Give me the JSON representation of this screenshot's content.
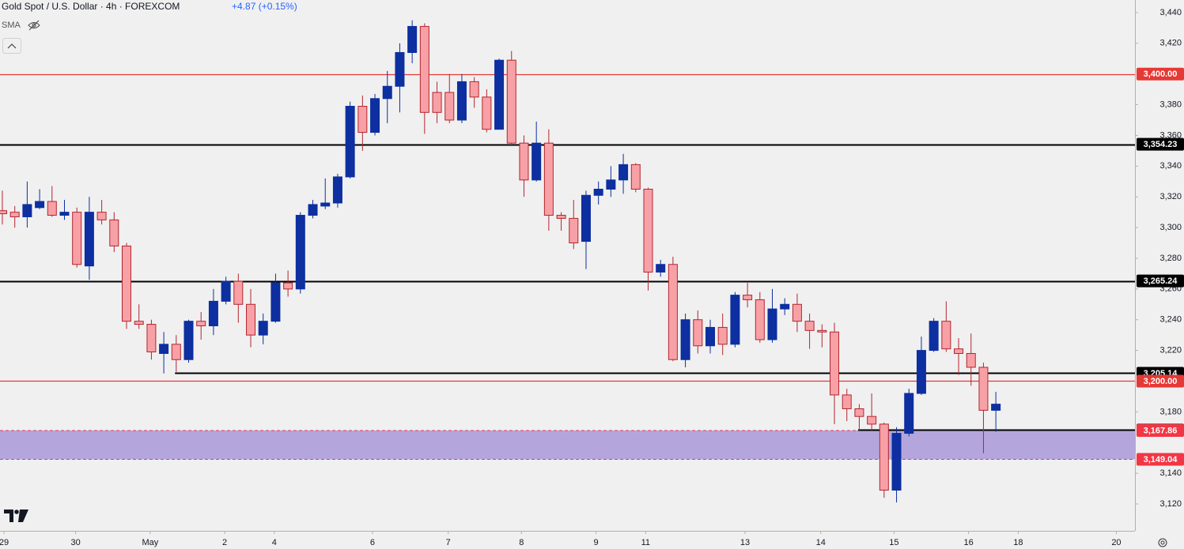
{
  "chart_data": {
    "type": "candlestick",
    "title": "Gold Spot / U.S. Dollar · 4h · FOREXCOM",
    "change": "+4.87 (+0.15%)",
    "indicator": "SMA",
    "up_color": "#0d2fa0",
    "down_color": "#f7a1a7",
    "down_line": "#b3262e",
    "xlim": [
      -0.19,
      91.2
    ],
    "xticks": [
      0.13,
      5.9,
      {
        "value": 11.9,
        "label": "May"
      },
      {
        "value": 17.9,
        "label": "2"
      },
      {
        "value": 21.9,
        "label": "4"
      },
      {
        "value": 29.8,
        "label": "6"
      },
      {
        "value": 35.9,
        "label": "7"
      },
      {
        "value": 41.8,
        "label": "8"
      },
      {
        "value": 47.8,
        "label": "9"
      },
      {
        "value": 51.8,
        "label": "11"
      },
      {
        "value": 59.8,
        "label": "13"
      },
      {
        "value": 65.9,
        "label": "14"
      },
      {
        "value": 71.8,
        "label": "15"
      },
      {
        "value": 77.8,
        "label": "16"
      },
      {
        "value": 81.8,
        "label": "18"
      },
      {
        "value": 89.7,
        "label": "20"
      }
    ],
    "xtick_labels_plain": [
      "29",
      "30"
    ],
    "ylim": [
      3102.5,
      3448.2
    ],
    "yticks": [
      {
        "value": 3440,
        "label": "3,440"
      },
      {
        "value": 3420,
        "label": "3,420"
      },
      {
        "value": 3380,
        "label": "3,380"
      },
      {
        "value": 3360,
        "label": "3,360"
      },
      {
        "value": 3340,
        "label": "3,340"
      },
      {
        "value": 3320,
        "label": "3,320"
      },
      {
        "value": 3300,
        "label": "3,300"
      },
      {
        "value": 3280,
        "label": "3,280"
      },
      {
        "value": 3260,
        "label": "3,260"
      },
      {
        "value": 3240,
        "label": "3,240"
      },
      {
        "value": 3220,
        "label": "3,220"
      },
      {
        "value": 3180,
        "label": "3,180"
      },
      {
        "value": 3140,
        "label": "3,140"
      },
      {
        "value": 3120,
        "label": "3,120"
      }
    ],
    "open": [
      3311,
      3310,
      3307,
      3313,
      3317,
      3308,
      3310,
      3275,
      3310,
      3305,
      3288,
      3239,
      3237,
      3218,
      3224,
      3214,
      3239,
      3236,
      3252,
      3265,
      3250,
      3230,
      3239,
      3264,
      3260,
      3308,
      3314,
      3316,
      3333,
      3379,
      3362,
      3384,
      3392,
      3414,
      3431,
      3388,
      3388,
      3370,
      3395,
      3385,
      3364,
      3409,
      3355,
      3331,
      3355,
      3308,
      3306,
      3291,
      3321,
      3325,
      3331,
      3341,
      3325,
      3271,
      3276,
      3214,
      3240,
      3223,
      3235,
      3224,
      3256,
      3253,
      3227,
      3247,
      3250,
      3239,
      3233,
      3232,
      3191,
      3182,
      3177,
      3172,
      3129,
      3166,
      3192,
      3220,
      3239,
      3221,
      3218,
      3209,
      3181
    ],
    "high": [
      3324,
      3314,
      3330,
      3325,
      3327,
      3318,
      3313,
      3320,
      3318,
      3310,
      3290,
      3250,
      3240,
      3232,
      3230,
      3240,
      3245,
      3260,
      3268,
      3270,
      3260,
      3244,
      3270,
      3272,
      3310,
      3318,
      3332,
      3335,
      3382,
      3386,
      3387,
      3402,
      3420,
      3435,
      3433,
      3395,
      3400,
      3400,
      3398,
      3390,
      3410,
      3415,
      3360,
      3369,
      3364,
      3310,
      3318,
      3324,
      3330,
      3340,
      3348,
      3342,
      3326,
      3279,
      3281,
      3244,
      3246,
      3240,
      3244,
      3258,
      3264,
      3258,
      3260,
      3254,
      3257,
      3244,
      3237,
      3238,
      3195,
      3185,
      3192,
      3173,
      3170,
      3195,
      3229,
      3241,
      3252,
      3228,
      3231,
      3212,
      3193
    ],
    "low": [
      3302,
      3300,
      3300,
      3312,
      3307,
      3305,
      3274,
      3266,
      3302,
      3284,
      3234,
      3234,
      3214,
      3205,
      3206,
      3212,
      3227,
      3230,
      3250,
      3238,
      3222,
      3224,
      3238,
      3255,
      3257,
      3306,
      3312,
      3313,
      3332,
      3350,
      3360,
      3368,
      3375,
      3407,
      3361,
      3368,
      3368,
      3368,
      3378,
      3362,
      3364,
      3353,
      3320,
      3330,
      3298,
      3298,
      3286,
      3273,
      3315,
      3320,
      3322,
      3323,
      3259,
      3268,
      3213,
      3209,
      3218,
      3218,
      3217,
      3222,
      3248,
      3225,
      3225,
      3243,
      3232,
      3221,
      3222,
      3172,
      3174,
      3168,
      3168,
      3124,
      3121,
      3164,
      3191,
      3219,
      3219,
      3204,
      3197,
      3153,
      3167
    ],
    "close": [
      3309,
      3307,
      3315,
      3317,
      3308,
      3310,
      3276,
      3310,
      3305,
      3288,
      3239,
      3237,
      3219,
      3224,
      3214,
      3239,
      3236,
      3252,
      3265,
      3250,
      3230,
      3239,
      3264,
      3260,
      3308,
      3315,
      3316,
      3333,
      3379,
      3362,
      3384,
      3392,
      3414,
      3431,
      3375,
      3375,
      3370,
      3395,
      3385,
      3364,
      3409,
      3355,
      3331,
      3355,
      3308,
      3306,
      3290,
      3321,
      3325,
      3331,
      3341,
      3325,
      3271,
      3276,
      3214,
      3240,
      3223,
      3235,
      3224,
      3256,
      3253,
      3227,
      3247,
      3250,
      3239,
      3233,
      3232,
      3191,
      3182,
      3177,
      3172,
      3129,
      3166,
      3192,
      3220,
      3239,
      3221,
      3218,
      3209,
      3181,
      3185
    ],
    "levels": [
      {
        "value": 3400,
        "label": "3,400.00",
        "color": "#e53935",
        "x_start": -0.19
      },
      {
        "value": 3354.23,
        "label": "3,354.23",
        "color": "#000000",
        "x_start": -0.19
      },
      {
        "value": 3265.24,
        "label": "3,265.24",
        "color": "#000000",
        "x_start": -0.19
      },
      {
        "value": 3205.14,
        "label": "3,205.14",
        "color": "#000000",
        "x_start": 13.9
      },
      {
        "value": 3200,
        "label": "3,200.00",
        "color": "#e53935",
        "x_start": -0.19
      },
      {
        "value": 3168.1,
        "label": "3,168.10",
        "color": "#000000",
        "x_start": 68.9
      }
    ],
    "zone": {
      "color": "#b4a6dc",
      "border": "#e5395a",
      "top": {
        "value": 3167.86,
        "label": "3,167.86"
      },
      "bottom": {
        "value": 3149.04,
        "label": "3,149.04"
      }
    }
  }
}
